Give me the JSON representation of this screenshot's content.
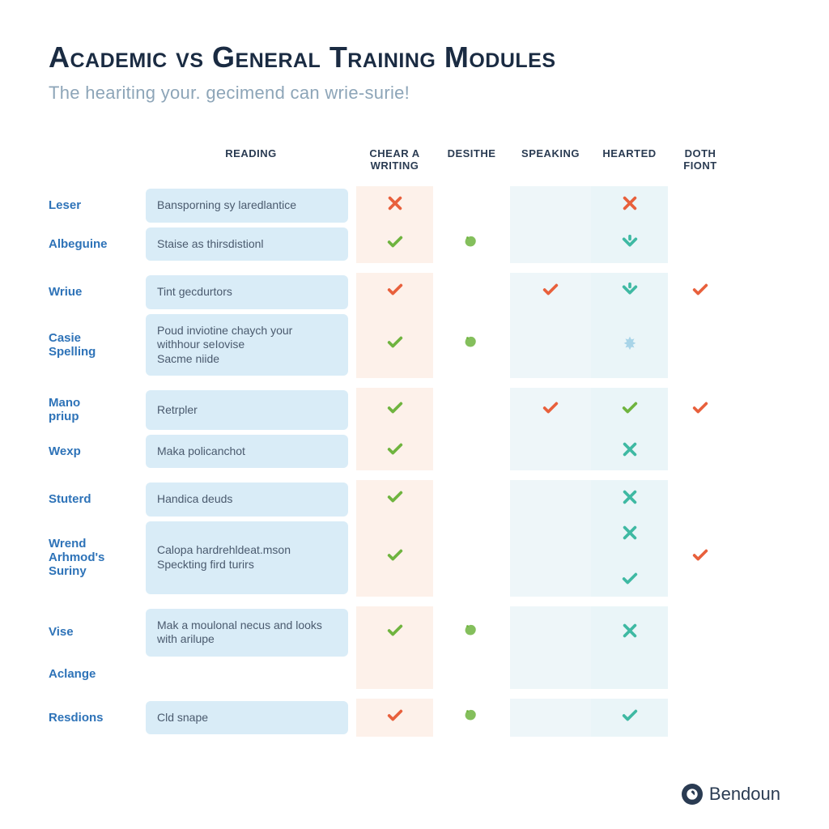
{
  "title_part1": "Academic ",
  "title_vs": "vs",
  "title_part2": " General Training Modules",
  "subtitle": "The heariting your. gecimend can wrie-surie!",
  "columns": {
    "reading": "READING",
    "writing_a": "Chear a",
    "writing_b": "WRITING",
    "desithe": "DESITHE",
    "speaking": "SPEAKING",
    "hearted": "HEARTED",
    "doth_a": "DOTH",
    "doth_b": "FIONT"
  },
  "rows": [
    {
      "label": "Leser",
      "desc": "Bansporning sy laredlantice",
      "cells": [
        "cross-red",
        "",
        "",
        "cross-red",
        ""
      ]
    },
    {
      "label": "Albeguine",
      "desc": "Staise as thirsdistionl",
      "cells": [
        "check-green",
        "blob-green",
        "",
        "vee-teal",
        ""
      ]
    },
    {
      "label": "Wriue",
      "desc": "Tint gecdurtors",
      "cells": [
        "check-red",
        "",
        "check-red",
        "vee-teal",
        "check-red"
      ]
    },
    {
      "label": "Casie Spelling",
      "desc": "Poud inviotine chaych your withhour seIovise\nSacme niide",
      "cells": [
        "check-green",
        "blob-green",
        "",
        "splash-blue",
        ""
      ]
    },
    {
      "label": "Mano priup",
      "desc": "Retrpler",
      "cells": [
        "check-green",
        "",
        "check-red",
        "check-green",
        "check-red"
      ]
    },
    {
      "label": "Wexp",
      "desc": "Maka policanchot",
      "cells": [
        "check-green",
        "",
        "",
        "cross-teal",
        ""
      ]
    },
    {
      "label": "Stuterd",
      "desc": "Handica deuds",
      "cells": [
        "check-green",
        "",
        "",
        "cross-teal",
        ""
      ]
    },
    {
      "label": "Wrend Arhmod's Suriny",
      "desc": "Calopa hardrehldeat.mson\nSpeckting fird turirs",
      "cells": [
        "check-green",
        "",
        "",
        "cross-teal\ncheck-teal",
        "check-red"
      ]
    },
    {
      "label": "Vise",
      "desc": "Mak a moulonal necus and looks with arilupe",
      "cells": [
        "check-green",
        "blob-green",
        "",
        "cross-teal",
        ""
      ]
    },
    {
      "label": "Aclange",
      "desc": "",
      "cells": [
        "",
        "",
        "",
        "",
        ""
      ]
    },
    {
      "label": "Resdions",
      "desc": "Cld snape",
      "cells": [
        "check-red",
        "blob-green",
        "",
        "check-teal",
        ""
      ]
    }
  ],
  "gaps_after": [
    1,
    3,
    5,
    7,
    9
  ],
  "colors": {
    "red": "#e8603c",
    "green": "#6fb43f",
    "teal": "#3fb9a3",
    "blue": "#a8d4e8",
    "label": "#2e73b8",
    "rowbg": "#d9ecf7",
    "writingbg": "#fdf1ea",
    "colbg": "#eaf5f8"
  },
  "footer": "Bendoun"
}
